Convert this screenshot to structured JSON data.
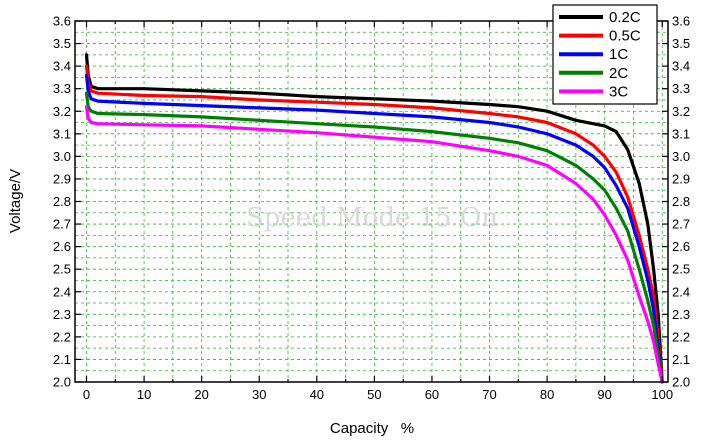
{
  "watermark": "Speed Mode 15 On",
  "chart_data": {
    "type": "line",
    "title": "",
    "xlabel": "Capacity   %",
    "ylabel": "Voltage/V",
    "xlim": [
      -2,
      101
    ],
    "ylim": [
      2.0,
      3.6
    ],
    "xticks": [
      0,
      10,
      20,
      30,
      40,
      50,
      60,
      70,
      80,
      90,
      100
    ],
    "yticks": [
      2.0,
      2.1,
      2.2,
      2.3,
      2.4,
      2.5,
      2.6,
      2.7,
      2.8,
      2.9,
      3.0,
      3.1,
      3.2,
      3.3,
      3.4,
      3.5,
      3.6
    ],
    "ytick_labels": [
      "2.0",
      "2.1",
      "2.2",
      "2.3",
      "2.4",
      "2.5",
      "2.6",
      "2.7",
      "2.8",
      "2.9",
      "3.0",
      "3.1",
      "3.2",
      "3.3",
      "3.4",
      "3.5",
      "3.6"
    ],
    "right_axis": true,
    "grid": true,
    "grid_color": "#22bb22",
    "legend_position": "top-right",
    "series": [
      {
        "name": "0.2C",
        "color": "#000000",
        "points": [
          [
            0,
            3.45
          ],
          [
            0.3,
            3.36
          ],
          [
            0.8,
            3.31
          ],
          [
            2,
            3.3
          ],
          [
            10,
            3.3
          ],
          [
            20,
            3.29
          ],
          [
            30,
            3.28
          ],
          [
            40,
            3.265
          ],
          [
            50,
            3.255
          ],
          [
            60,
            3.245
          ],
          [
            70,
            3.23
          ],
          [
            75,
            3.22
          ],
          [
            80,
            3.2
          ],
          [
            85,
            3.16
          ],
          [
            88,
            3.145
          ],
          [
            90,
            3.135
          ],
          [
            92,
            3.11
          ],
          [
            94,
            3.03
          ],
          [
            96,
            2.88
          ],
          [
            97.5,
            2.7
          ],
          [
            98.5,
            2.5
          ],
          [
            99.3,
            2.3
          ],
          [
            100,
            2.0
          ]
        ]
      },
      {
        "name": "0.5C",
        "color": "#ff0000",
        "points": [
          [
            0,
            3.4
          ],
          [
            0.3,
            3.33
          ],
          [
            0.8,
            3.29
          ],
          [
            2,
            3.28
          ],
          [
            10,
            3.27
          ],
          [
            20,
            3.265
          ],
          [
            30,
            3.25
          ],
          [
            40,
            3.24
          ],
          [
            50,
            3.23
          ],
          [
            60,
            3.215
          ],
          [
            70,
            3.19
          ],
          [
            75,
            3.175
          ],
          [
            80,
            3.15
          ],
          [
            85,
            3.1
          ],
          [
            88,
            3.05
          ],
          [
            90,
            3.0
          ],
          [
            92,
            2.93
          ],
          [
            94,
            2.82
          ],
          [
            96,
            2.65
          ],
          [
            97.5,
            2.5
          ],
          [
            98.5,
            2.38
          ],
          [
            99.3,
            2.2
          ],
          [
            100,
            2.0
          ]
        ]
      },
      {
        "name": "1C",
        "color": "#0000ff",
        "points": [
          [
            0,
            3.36
          ],
          [
            0.3,
            3.29
          ],
          [
            0.8,
            3.255
          ],
          [
            2,
            3.245
          ],
          [
            10,
            3.235
          ],
          [
            20,
            3.225
          ],
          [
            30,
            3.215
          ],
          [
            40,
            3.205
          ],
          [
            50,
            3.19
          ],
          [
            60,
            3.175
          ],
          [
            70,
            3.15
          ],
          [
            75,
            3.13
          ],
          [
            80,
            3.1
          ],
          [
            85,
            3.05
          ],
          [
            88,
            3.0
          ],
          [
            90,
            2.95
          ],
          [
            92,
            2.87
          ],
          [
            94,
            2.77
          ],
          [
            96,
            2.6
          ],
          [
            97.5,
            2.45
          ],
          [
            98.5,
            2.32
          ],
          [
            99.3,
            2.15
          ],
          [
            100,
            2.0
          ]
        ]
      },
      {
        "name": "2C",
        "color": "#008000",
        "points": [
          [
            0,
            3.28
          ],
          [
            0.3,
            3.22
          ],
          [
            0.8,
            3.2
          ],
          [
            2,
            3.19
          ],
          [
            10,
            3.185
          ],
          [
            20,
            3.175
          ],
          [
            30,
            3.16
          ],
          [
            40,
            3.145
          ],
          [
            50,
            3.13
          ],
          [
            60,
            3.11
          ],
          [
            70,
            3.08
          ],
          [
            75,
            3.06
          ],
          [
            80,
            3.025
          ],
          [
            85,
            2.96
          ],
          [
            88,
            2.9
          ],
          [
            90,
            2.85
          ],
          [
            92,
            2.77
          ],
          [
            94,
            2.67
          ],
          [
            96,
            2.5
          ],
          [
            97.5,
            2.36
          ],
          [
            98.5,
            2.25
          ],
          [
            99.3,
            2.12
          ],
          [
            100,
            2.0
          ]
        ]
      },
      {
        "name": "3C",
        "color": "#ff00ff",
        "points": [
          [
            0,
            3.22
          ],
          [
            0.3,
            3.17
          ],
          [
            0.8,
            3.15
          ],
          [
            2,
            3.145
          ],
          [
            10,
            3.14
          ],
          [
            20,
            3.135
          ],
          [
            30,
            3.12
          ],
          [
            40,
            3.105
          ],
          [
            50,
            3.085
          ],
          [
            60,
            3.065
          ],
          [
            70,
            3.025
          ],
          [
            75,
            3.0
          ],
          [
            80,
            2.96
          ],
          [
            85,
            2.88
          ],
          [
            88,
            2.81
          ],
          [
            90,
            2.74
          ],
          [
            92,
            2.65
          ],
          [
            94,
            2.54
          ],
          [
            96,
            2.38
          ],
          [
            97.5,
            2.27
          ],
          [
            98.5,
            2.18
          ],
          [
            99.3,
            2.08
          ],
          [
            100,
            2.0
          ]
        ]
      }
    ]
  }
}
